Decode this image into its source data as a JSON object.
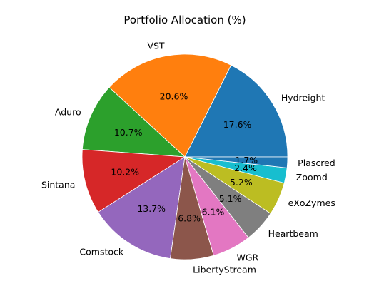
{
  "chart_data": {
    "type": "pie",
    "title": "Portfolio Allocation (%)",
    "categories": [
      "Hydreight",
      "VST",
      "Aduro",
      "Sintana",
      "Comstock",
      "LibertyStream",
      "WGR",
      "Heartbeam",
      "eXoZymes",
      "Zoomd",
      "Plascred"
    ],
    "values": [
      17.6,
      20.6,
      10.7,
      10.2,
      13.7,
      6.8,
      6.1,
      5.1,
      5.2,
      2.4,
      1.7
    ],
    "labels": [
      "17.6%",
      "20.6%",
      "10.7%",
      "10.2%",
      "13.7%",
      "6.8%",
      "6.1%",
      "5.1%",
      "5.2%",
      "2.4%",
      "1.7%"
    ],
    "colors": [
      "#1f77b4",
      "#ff7f0e",
      "#2ca02c",
      "#d62728",
      "#9467bd",
      "#8c564b",
      "#e377c2",
      "#7f7f7f",
      "#bcbd22",
      "#17becf",
      "#1f77b4"
    ],
    "start_angle_deg": 0,
    "direction": "counterclockwise",
    "legend": "none"
  }
}
